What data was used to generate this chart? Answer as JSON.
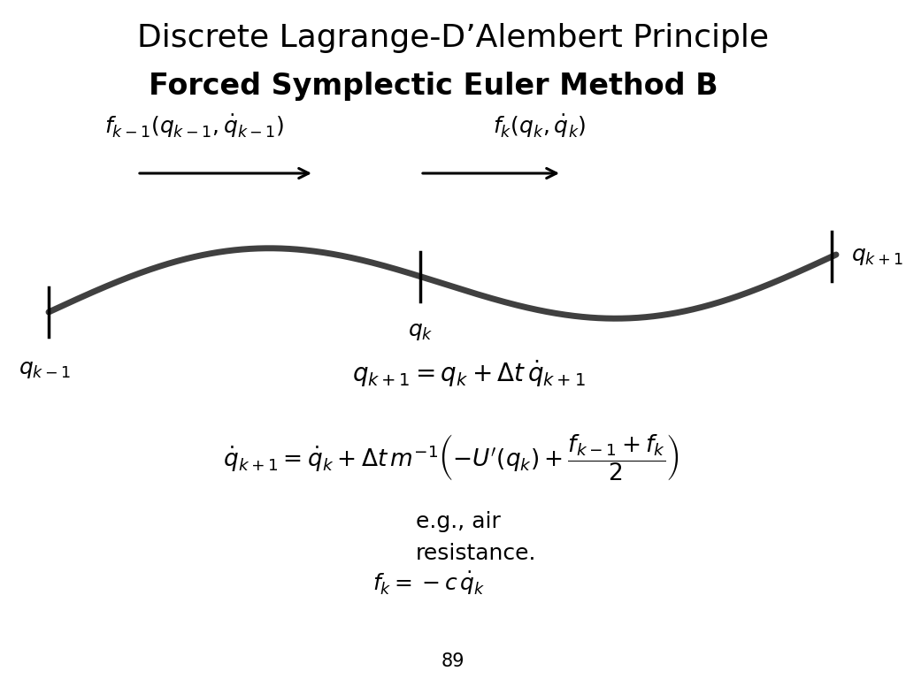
{
  "title": "Discrete Lagrange-D’Alembert Principle",
  "subtitle": "Forced Symplectic Euler Method B",
  "title_fontsize": 26,
  "subtitle_fontsize": 24,
  "bg_color": "#ffffff",
  "text_color": "#000000",
  "page_number": "89",
  "formula1_label": "$f_{k-1}(q_{k-1}, \\dot{q}_{k-1})$",
  "formula2_label": "$f_k(q_k, \\dot{q}_k)$",
  "label_qkm1": "$q_{k-1}$",
  "label_qk": "$q_k$",
  "label_qkp1": "$q_{k+1}$",
  "eq1": "$q_{k+1} = q_k + \\Delta t\\, \\dot{q}_{k+1}$",
  "eq2": "$\\dot{q}_{k+1} = \\dot{q}_k + \\Delta t\\, m^{-1}\\left(-U'(q_k) + \\dfrac{f_{k-1} + f_k}{2}\\right)$",
  "annotation_line1": "e.g., air",
  "annotation_line2": "resistance.",
  "eq3": "$f_k = -c\\, \\dot{q}_k$",
  "curve_color": "#404040",
  "curve_lw": 5,
  "arrow_color": "#000000",
  "tick_lw": 2.5
}
